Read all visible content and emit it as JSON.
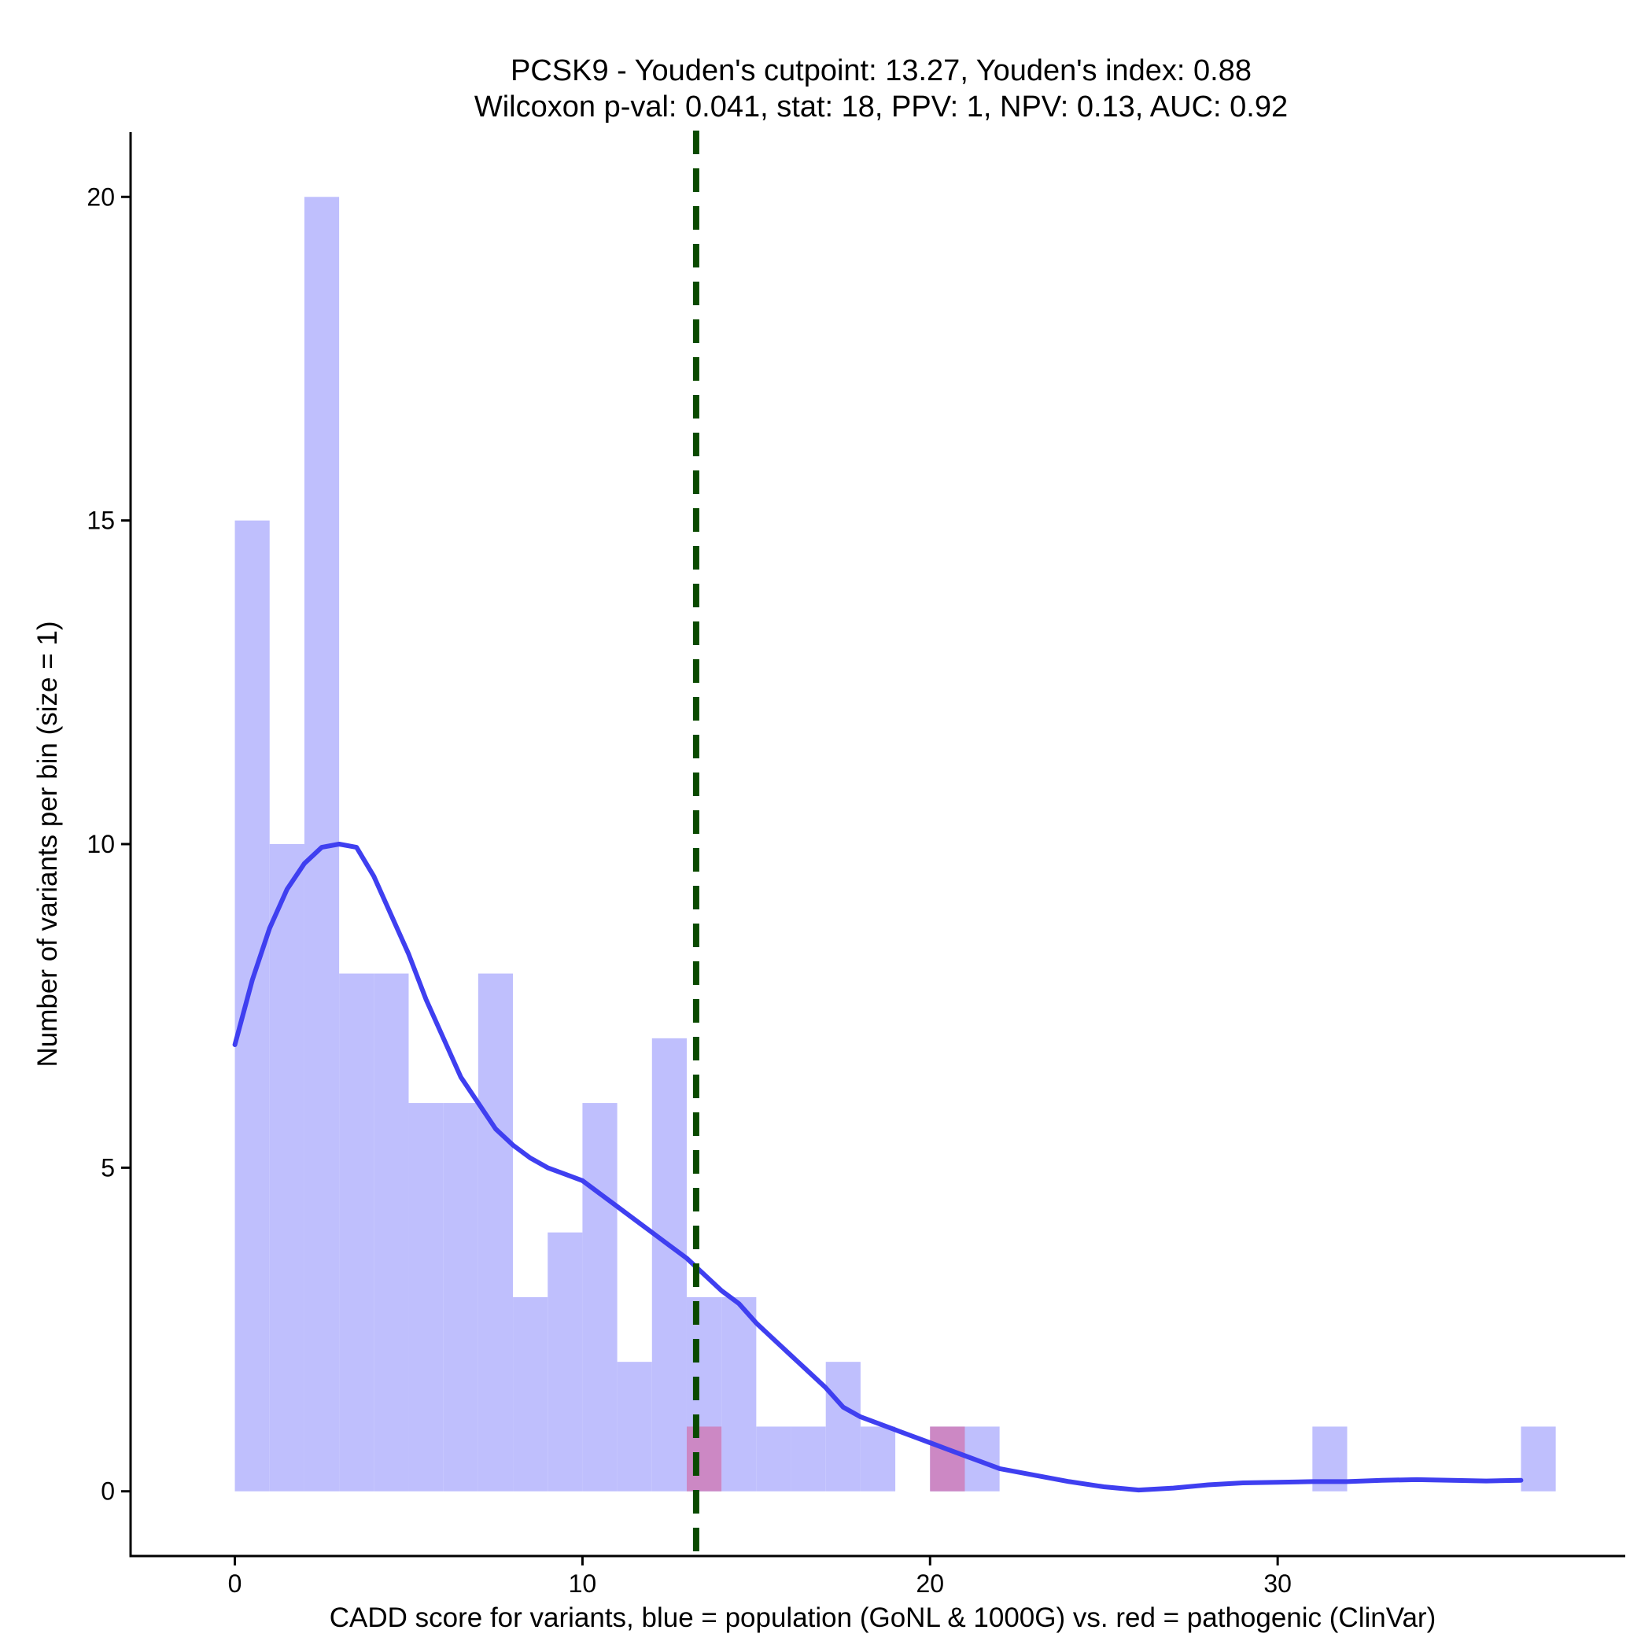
{
  "chart_data": {
    "type": "bar",
    "title_line1": "PCSK9 - Youden's cutpoint: 13.27, Youden's index: 0.88",
    "title_line2": "Wilcoxon p-val: 0.041, stat: 18, PPV: 1, NPV: 0.13, AUC: 0.92",
    "xlabel": "CADD score for variants, blue = population (GoNL & 1000G) vs. red = pathogenic (ClinVar)",
    "ylabel": "Number of variants per bin (size = 1)",
    "xlim": [
      -3,
      40
    ],
    "ylim": [
      -1,
      21
    ],
    "x_ticks": [
      0,
      10,
      20,
      30
    ],
    "y_ticks": [
      0,
      5,
      10,
      15,
      20
    ],
    "grid": false,
    "bin_width": 1,
    "cutpoint": 13.27,
    "series": [
      {
        "name": "population",
        "color": "#bfbffd",
        "bins": [
          {
            "x": 0,
            "count": 15
          },
          {
            "x": 1,
            "count": 10
          },
          {
            "x": 2,
            "count": 20
          },
          {
            "x": 3,
            "count": 8
          },
          {
            "x": 4,
            "count": 8
          },
          {
            "x": 5,
            "count": 6
          },
          {
            "x": 6,
            "count": 6
          },
          {
            "x": 7,
            "count": 8
          },
          {
            "x": 8,
            "count": 3
          },
          {
            "x": 9,
            "count": 4
          },
          {
            "x": 10,
            "count": 6
          },
          {
            "x": 11,
            "count": 2
          },
          {
            "x": 12,
            "count": 7
          },
          {
            "x": 13,
            "count": 3
          },
          {
            "x": 14,
            "count": 3
          },
          {
            "x": 15,
            "count": 1
          },
          {
            "x": 16,
            "count": 1
          },
          {
            "x": 17,
            "count": 2
          },
          {
            "x": 18,
            "count": 1
          },
          {
            "x": 20,
            "count": 1
          },
          {
            "x": 21,
            "count": 1
          },
          {
            "x": 31,
            "count": 1
          },
          {
            "x": 37,
            "count": 1
          }
        ]
      },
      {
        "name": "pathogenic",
        "color": "#cc88c4",
        "bins": [
          {
            "x": 13,
            "count": 1
          },
          {
            "x": 20,
            "count": 1
          }
        ]
      }
    ],
    "density_curve": {
      "color": "#3f3ff0",
      "points": [
        [
          0,
          6.9
        ],
        [
          0.5,
          7.9
        ],
        [
          1,
          8.7
        ],
        [
          1.5,
          9.3
        ],
        [
          2,
          9.7
        ],
        [
          2.5,
          9.95
        ],
        [
          3,
          10.0
        ],
        [
          3.5,
          9.95
        ],
        [
          4,
          9.5
        ],
        [
          4.5,
          8.9
        ],
        [
          5,
          8.3
        ],
        [
          5.5,
          7.6
        ],
        [
          6,
          7.0
        ],
        [
          6.5,
          6.4
        ],
        [
          7,
          6.0
        ],
        [
          7.5,
          5.6
        ],
        [
          8,
          5.35
        ],
        [
          8.5,
          5.15
        ],
        [
          9,
          5.0
        ],
        [
          9.5,
          4.9
        ],
        [
          10,
          4.8
        ],
        [
          10.5,
          4.6
        ],
        [
          11,
          4.4
        ],
        [
          11.5,
          4.2
        ],
        [
          12,
          4.0
        ],
        [
          12.5,
          3.8
        ],
        [
          13,
          3.6
        ],
        [
          13.5,
          3.35
        ],
        [
          14,
          3.1
        ],
        [
          14.5,
          2.9
        ],
        [
          15,
          2.6
        ],
        [
          15.5,
          2.35
        ],
        [
          16,
          2.1
        ],
        [
          16.5,
          1.85
        ],
        [
          17,
          1.6
        ],
        [
          17.5,
          1.3
        ],
        [
          18,
          1.15
        ],
        [
          18.5,
          1.05
        ],
        [
          19,
          0.95
        ],
        [
          19.5,
          0.85
        ],
        [
          20,
          0.75
        ],
        [
          20.5,
          0.65
        ],
        [
          21,
          0.55
        ],
        [
          21.5,
          0.45
        ],
        [
          22,
          0.35
        ],
        [
          23,
          0.25
        ],
        [
          24,
          0.15
        ],
        [
          25,
          0.07
        ],
        [
          26,
          0.02
        ],
        [
          27,
          0.05
        ],
        [
          28,
          0.1
        ],
        [
          29,
          0.13
        ],
        [
          30,
          0.14
        ],
        [
          31,
          0.15
        ],
        [
          32,
          0.15
        ],
        [
          33,
          0.17
        ],
        [
          34,
          0.18
        ],
        [
          35,
          0.17
        ],
        [
          36,
          0.16
        ],
        [
          37,
          0.17
        ]
      ]
    }
  }
}
